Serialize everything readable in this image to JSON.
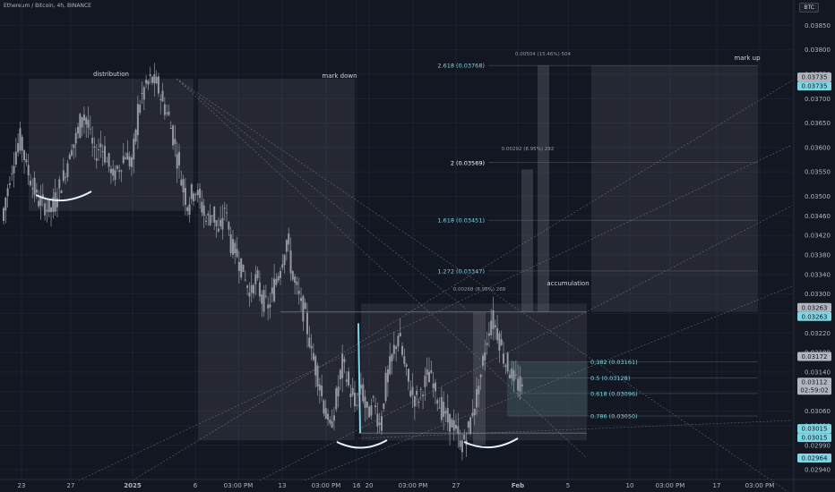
{
  "header": {
    "symbol": "Ethereum / Bitcoin, 4h, BINANCE",
    "currency": "BTC"
  },
  "chart_data": {
    "type": "candlestick",
    "title": "Ethereum / Bitcoin, 4h, BINANCE",
    "yaxis": {
      "ticks": [
        "0.03850",
        "0.03800",
        "0.03750",
        "0.03700",
        "0.03650",
        "0.03600",
        "0.03550",
        "0.03500",
        "0.03460",
        "0.03420",
        "0.03380",
        "0.03340",
        "0.03300",
        "0.03260",
        "0.03220",
        "0.03180",
        "0.03140",
        "0.03100",
        "0.03060",
        "0.03030",
        "0.02990",
        "0.02940"
      ],
      "range": [
        0.0292,
        0.0388
      ]
    },
    "xaxis": {
      "ticks": [
        "23",
        "27",
        "2025",
        "6",
        "03:00 PM",
        "13",
        "03:00 PM",
        "16",
        "20",
        "03:00 PM",
        "27",
        "Feb",
        "5",
        "10",
        "03:00 PM",
        "17",
        "03:00 PM"
      ]
    },
    "price_tags": [
      {
        "label": "0.03735",
        "value": 0.03735,
        "color": "#b2b5be"
      },
      {
        "label": "0.03735",
        "value": 0.03735,
        "color": "#7fd6e2"
      },
      {
        "label": "0.03263",
        "value": 0.03263,
        "color": "#b2b5be"
      },
      {
        "label": "0.03263",
        "value": 0.03263,
        "color": "#7fd6e2"
      },
      {
        "label": "0.03172",
        "value": 0.03172,
        "color": "#b2b5be"
      },
      {
        "label": "0.03112",
        "value": 0.03112,
        "color": "#b2b5be"
      },
      {
        "label": "02:59:02",
        "value": 0.03112,
        "color": "#b2b5be"
      },
      {
        "label": "0.03015",
        "value": 0.03015,
        "color": "#7fd6e2"
      },
      {
        "label": "0.03015",
        "value": 0.03015,
        "color": "#7fd6e2"
      },
      {
        "label": "0.02964",
        "value": 0.02964,
        "color": "#7fd6e2"
      }
    ],
    "annotations": {
      "distribution": "distribution",
      "mark_down": "mark down",
      "accumulation": "accumulation",
      "mark_up": "mark up",
      "range_low": "0.00268 (8.95%) 268",
      "range_mid": "0.00292 (8.95%) 292",
      "range_high": "0.00504 (15.46%) 504"
    },
    "fib_levels": [
      {
        "label": "2.618 (0.03768)",
        "value": 0.03768,
        "color": "#7fd6e2"
      },
      {
        "label": "2 (0.03569)",
        "value": 0.03569,
        "color": "#ffffff"
      },
      {
        "label": "1.618 (0.03451)",
        "value": 0.03451,
        "color": "#7fd6e2"
      },
      {
        "label": "1.272 (0.03347)",
        "value": 0.03347,
        "color": "#7fd6e2"
      },
      {
        "label": "0.382 (0.03161)",
        "value": 0.03161,
        "color": "#7fd6e2"
      },
      {
        "label": "0.5 (0.03128)",
        "value": 0.03128,
        "color": "#7fd6e2"
      },
      {
        "label": "0.618 (0.03096)",
        "value": 0.03096,
        "color": "#7fd6e2"
      },
      {
        "label": "0.786 (0.03050)",
        "value": 0.0305,
        "color": "#7fd6e2"
      }
    ],
    "colors": {
      "up": "#26a69a",
      "down": "#ef5350",
      "candle": "#9598a1",
      "accent": "#7fd6e2",
      "box": "#2a2e39",
      "grid": "#1c2030"
    },
    "price_path": [
      0.0345,
      0.0352,
      0.0358,
      0.0362,
      0.0356,
      0.0352,
      0.0349,
      0.0348,
      0.0347,
      0.0351,
      0.0354,
      0.0359,
      0.0362,
      0.0367,
      0.0364,
      0.0358,
      0.0361,
      0.0357,
      0.0354,
      0.0356,
      0.0359,
      0.0356,
      0.0368,
      0.0372,
      0.0374,
      0.0373,
      0.0369,
      0.0366,
      0.036,
      0.0353,
      0.0348,
      0.0352,
      0.0349,
      0.0345,
      0.0347,
      0.0342,
      0.0348,
      0.034,
      0.0338,
      0.0334,
      0.033,
      0.0333,
      0.0329,
      0.0327,
      0.0332,
      0.0336,
      0.0341,
      0.0333,
      0.0329,
      0.0325,
      0.0318,
      0.0313,
      0.0307,
      0.0302,
      0.0309,
      0.0316,
      0.0311,
      0.0307,
      0.0311,
      0.0305,
      0.0308,
      0.0303,
      0.0312,
      0.0317,
      0.0322,
      0.0315,
      0.031,
      0.0308,
      0.0311,
      0.0314,
      0.031,
      0.0306,
      0.0304,
      0.0303,
      0.0299,
      0.0301,
      0.0306,
      0.0311,
      0.0319,
      0.0325,
      0.0322,
      0.0317,
      0.0314,
      0.0312,
      0.031
    ]
  }
}
